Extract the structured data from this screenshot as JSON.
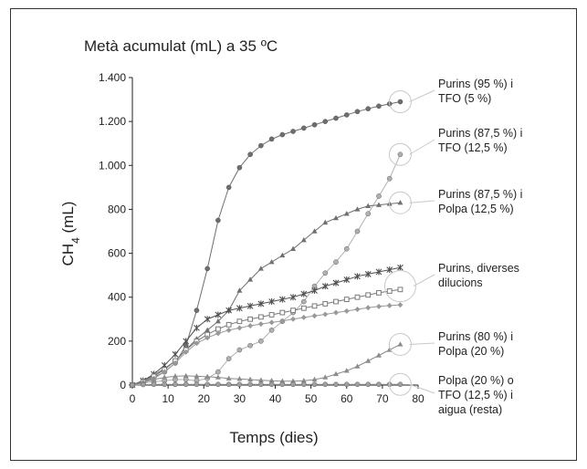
{
  "chart_data": {
    "type": "line",
    "title": "Metà acumulat (mL) a 35 ºC",
    "xlabel": "Temps (dies)",
    "ylabel_main": "CH",
    "ylabel_sub": "4",
    "ylabel_unit": " (mL)",
    "xlim": [
      0,
      80
    ],
    "ylim": [
      0,
      1400
    ],
    "xticks": [
      0,
      10,
      20,
      30,
      40,
      50,
      60,
      70,
      80
    ],
    "xtick_labels": [
      "0",
      "10",
      "20",
      "30",
      "40",
      "50",
      "60",
      "70",
      "80"
    ],
    "yticks": [
      0,
      200,
      400,
      600,
      800,
      1000,
      1200,
      1400
    ],
    "ytick_labels": [
      "0",
      "200",
      "400",
      "600",
      "800",
      "1.000",
      "1.200",
      "1.400"
    ],
    "grid": false,
    "series": [
      {
        "color": "#6e6e6e",
        "marker": "circle",
        "x": [
          0,
          3,
          6,
          9,
          12,
          15,
          18,
          21,
          24,
          27,
          30,
          33,
          36,
          39,
          42,
          45,
          48,
          51,
          54,
          57,
          60,
          63,
          66,
          69,
          72,
          75
        ],
        "y": [
          0,
          15,
          35,
          60,
          100,
          180,
          340,
          530,
          750,
          900,
          990,
          1050,
          1090,
          1120,
          1140,
          1155,
          1170,
          1185,
          1200,
          1215,
          1230,
          1245,
          1258,
          1270,
          1280,
          1290
        ]
      },
      {
        "color": "#b0b0b0",
        "marker": "circle",
        "x": [
          0,
          3,
          6,
          9,
          12,
          15,
          18,
          21,
          24,
          27,
          30,
          33,
          36,
          39,
          42,
          45,
          48,
          51,
          54,
          57,
          60,
          63,
          66,
          69,
          72,
          75
        ],
        "y": [
          0,
          10,
          15,
          20,
          25,
          25,
          20,
          30,
          60,
          120,
          160,
          180,
          200,
          250,
          290,
          330,
          380,
          450,
          510,
          560,
          620,
          700,
          780,
          860,
          940,
          1050
        ]
      },
      {
        "color": "#707070",
        "marker": "triangle",
        "x": [
          0,
          3,
          6,
          9,
          12,
          15,
          18,
          21,
          24,
          27,
          30,
          33,
          36,
          39,
          42,
          45,
          48,
          51,
          54,
          57,
          60,
          63,
          66,
          69,
          72,
          75
        ],
        "y": [
          0,
          20,
          45,
          75,
          110,
          160,
          210,
          250,
          290,
          340,
          430,
          480,
          530,
          560,
          590,
          620,
          660,
          700,
          740,
          760,
          780,
          800,
          815,
          820,
          825,
          830
        ]
      },
      {
        "color": "#505050",
        "marker": "star",
        "x": [
          0,
          3,
          6,
          9,
          12,
          15,
          18,
          21,
          24,
          27,
          30,
          33,
          36,
          39,
          42,
          45,
          48,
          51,
          54,
          57,
          60,
          63,
          66,
          69,
          72,
          75
        ],
        "y": [
          0,
          20,
          50,
          90,
          140,
          200,
          260,
          300,
          320,
          340,
          350,
          360,
          370,
          380,
          390,
          400,
          415,
          430,
          450,
          465,
          480,
          495,
          505,
          515,
          525,
          535
        ]
      },
      {
        "color": "#7a7a7a",
        "marker": "square",
        "x": [
          0,
          3,
          6,
          9,
          12,
          15,
          18,
          21,
          24,
          27,
          30,
          33,
          36,
          39,
          42,
          45,
          48,
          51,
          54,
          57,
          60,
          63,
          66,
          69,
          72,
          75
        ],
        "y": [
          0,
          15,
          40,
          70,
          110,
          160,
          200,
          230,
          255,
          275,
          290,
          300,
          310,
          320,
          330,
          340,
          350,
          360,
          370,
          380,
          390,
          400,
          410,
          420,
          428,
          435
        ]
      },
      {
        "color": "#999999",
        "marker": "diamond",
        "x": [
          0,
          3,
          6,
          9,
          12,
          15,
          18,
          21,
          24,
          27,
          30,
          33,
          36,
          39,
          42,
          45,
          48,
          51,
          54,
          57,
          60,
          63,
          66,
          69,
          72,
          75
        ],
        "y": [
          0,
          10,
          30,
          60,
          100,
          150,
          190,
          215,
          235,
          250,
          260,
          270,
          278,
          285,
          292,
          300,
          308,
          315,
          322,
          330,
          337,
          345,
          352,
          358,
          362,
          365
        ]
      },
      {
        "color": "#8c8c8c",
        "marker": "triangle",
        "x": [
          0,
          3,
          6,
          9,
          12,
          15,
          18,
          21,
          24,
          27,
          30,
          33,
          36,
          39,
          42,
          45,
          48,
          51,
          54,
          57,
          60,
          63,
          66,
          69,
          72,
          75
        ],
        "y": [
          0,
          12,
          25,
          35,
          40,
          42,
          40,
          38,
          35,
          30,
          28,
          25,
          22,
          20,
          18,
          18,
          20,
          25,
          35,
          50,
          65,
          85,
          110,
          135,
          160,
          185
        ]
      },
      {
        "color": "#a0a0a0",
        "marker": "circle",
        "x": [
          0,
          3,
          6,
          9,
          12,
          15,
          18,
          21,
          24,
          27,
          30,
          33,
          36,
          39,
          42,
          45,
          48,
          51,
          54,
          57,
          60,
          63,
          66,
          69,
          72,
          75
        ],
        "y": [
          0,
          2,
          3,
          3,
          3,
          3,
          3,
          3,
          3,
          3,
          3,
          3,
          3,
          3,
          3,
          3,
          3,
          3,
          3,
          3,
          3,
          3,
          3,
          3,
          3,
          3
        ]
      }
    ],
    "annotations": [
      {
        "lines": [
          "Purins (95 %) i",
          "TFO (5 %)"
        ],
        "target_x": 75,
        "target_y": 1290
      },
      {
        "lines": [
          "Purins (87,5 %) i",
          "TFO (12,5 %)"
        ],
        "target_x": 75,
        "target_y": 1050
      },
      {
        "lines": [
          "Purins (87,5 %) i",
          "Polpa (12,5 %)"
        ],
        "target_x": 75,
        "target_y": 830
      },
      {
        "lines": [
          "Purins, diverses",
          "dilucions"
        ],
        "target_x": 75,
        "target_y": 450
      },
      {
        "lines": [
          "Purins (80 %) i",
          "Polpa (20 %)"
        ],
        "target_x": 75,
        "target_y": 185
      },
      {
        "lines": [
          "Polpa (20 %) o",
          "TFO (12,5 %) i",
          "aigua (resta)"
        ],
        "target_x": 75,
        "target_y": 3
      }
    ]
  }
}
